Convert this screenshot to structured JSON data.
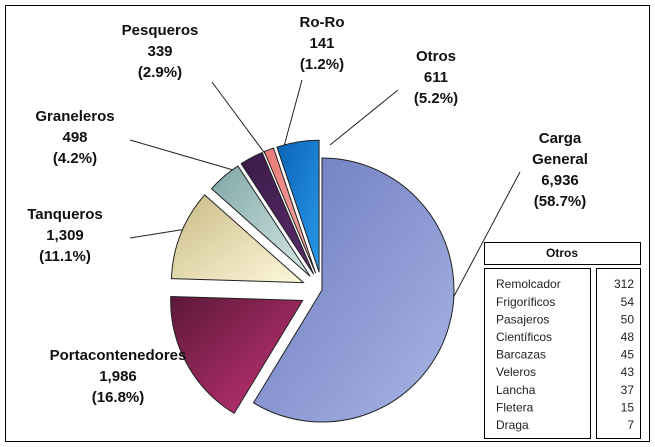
{
  "chart_data": {
    "type": "pie",
    "categories": [
      "Carga General",
      "Portacontenedores",
      "Tanqueros",
      "Graneleros",
      "Pesqueros",
      "Ro-Ro",
      "Otros"
    ],
    "values": [
      6936,
      1986,
      1309,
      498,
      339,
      141,
      611
    ],
    "value_labels": [
      "6,936",
      "1,986",
      "1,309",
      "498",
      "339",
      "141",
      "611"
    ],
    "percentages": [
      58.7,
      16.8,
      11.1,
      4.2,
      2.9,
      1.2,
      5.2
    ],
    "percentage_labels": [
      "(58.7%)",
      "(16.8%)",
      "(11.1%)",
      "(4.2%)",
      "(2.9%)",
      "(1.2%)",
      "(5.2%)"
    ],
    "colors": [
      "#6b78bf",
      "#5c1838",
      "#c9bb86",
      "#7fa6a6",
      "#3a1a48",
      "#e87878",
      "#0a64b8"
    ],
    "colors_light": [
      "#a8b6e4",
      "#c8347a",
      "#fff9dc",
      "#d6e8e6",
      "#5a2c6c",
      "#f6b0a8",
      "#2a98e8"
    ]
  },
  "table": {
    "title": "Otros",
    "rows": [
      [
        "Remolcador",
        312
      ],
      [
        "Frigoríficos",
        54
      ],
      [
        "Pasajeros",
        50
      ],
      [
        "Científicos",
        48
      ],
      [
        "Barcazas",
        45
      ],
      [
        "Veleros",
        43
      ],
      [
        "Lancha",
        37
      ],
      [
        "Fletera",
        15
      ],
      [
        "Draga",
        7
      ]
    ]
  }
}
